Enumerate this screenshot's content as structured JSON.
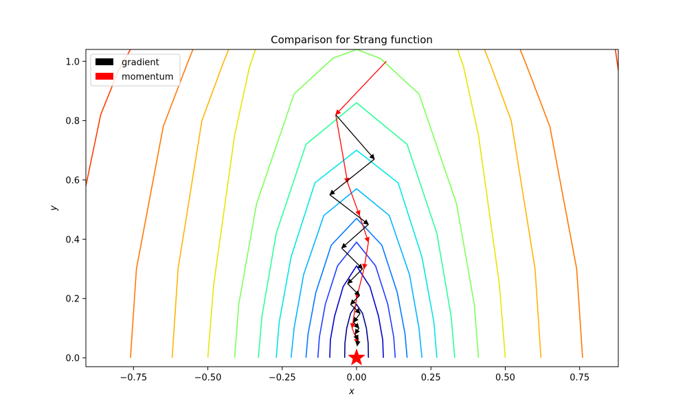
{
  "chart_data": {
    "type": "line",
    "title": "Comparison for Strang function",
    "xlabel": "x",
    "ylabel": "y",
    "xlim": [
      -0.91,
      0.88
    ],
    "ylim": [
      -0.03,
      1.04
    ],
    "xticks": [
      -0.75,
      -0.5,
      -0.25,
      0.0,
      0.25,
      0.5,
      0.75
    ],
    "xtick_labels": [
      "−0.75",
      "−0.50",
      "−0.25",
      "0.00",
      "0.25",
      "0.50",
      "0.75"
    ],
    "yticks": [
      0.0,
      0.2,
      0.4,
      0.6,
      0.8,
      1.0
    ],
    "ytick_labels": [
      "0.0",
      "0.2",
      "0.4",
      "0.6",
      "0.8",
      "1.0"
    ],
    "grid": false,
    "legend_position": "top-left",
    "legend": [
      {
        "name": "gradient",
        "color": "#000000"
      },
      {
        "name": "momentum",
        "color": "#ff0000"
      }
    ],
    "contours": [
      {
        "color": "#00008b",
        "x": [
          -0.04,
          -0.039,
          -0.033,
          -0.02,
          0,
          0.02,
          0.033,
          0.039,
          0.04
        ],
        "y": [
          0,
          0.05,
          0.1,
          0.15,
          0.18,
          0.15,
          0.1,
          0.05,
          0
        ]
      },
      {
        "color": "#0000cd",
        "x": [
          -0.09,
          -0.088,
          -0.074,
          -0.045,
          0,
          0.045,
          0.074,
          0.088,
          0.09
        ],
        "y": [
          0,
          0.06,
          0.14,
          0.24,
          0.31,
          0.24,
          0.14,
          0.06,
          0
        ]
      },
      {
        "color": "#1e3cff",
        "x": [
          -0.13,
          -0.125,
          -0.105,
          -0.064,
          0,
          0.064,
          0.105,
          0.125,
          0.13
        ],
        "y": [
          0,
          0.07,
          0.18,
          0.31,
          0.39,
          0.31,
          0.18,
          0.07,
          0
        ]
      },
      {
        "color": "#0078ff",
        "x": [
          -0.17,
          -0.163,
          -0.137,
          -0.085,
          0,
          0.085,
          0.137,
          0.163,
          0.17
        ],
        "y": [
          0,
          0.08,
          0.22,
          0.38,
          0.47,
          0.38,
          0.22,
          0.08,
          0
        ]
      },
      {
        "color": "#00b4ff",
        "x": [
          -0.22,
          -0.21,
          -0.178,
          -0.11,
          0,
          0.11,
          0.178,
          0.21,
          0.22
        ],
        "y": [
          0,
          0.1,
          0.28,
          0.48,
          0.57,
          0.48,
          0.28,
          0.1,
          0
        ]
      },
      {
        "color": "#00e6e6",
        "x": [
          -0.27,
          -0.26,
          -0.22,
          -0.14,
          0,
          0.14,
          0.22,
          0.26,
          0.27
        ],
        "y": [
          0,
          0.12,
          0.34,
          0.59,
          0.7,
          0.59,
          0.34,
          0.12,
          0
        ]
      },
      {
        "color": "#2cff9a",
        "x": [
          -0.33,
          -0.318,
          -0.27,
          -0.17,
          0,
          0.17,
          0.27,
          0.318,
          0.33
        ],
        "y": [
          0,
          0.14,
          0.42,
          0.72,
          0.86,
          0.72,
          0.42,
          0.14,
          0
        ]
      },
      {
        "color": "#7cff5a",
        "x": [
          -0.41,
          -0.396,
          -0.336,
          -0.21,
          -0.08,
          0,
          0.08,
          0.21,
          0.336,
          0.396,
          0.41
        ],
        "y": [
          0,
          0.18,
          0.52,
          0.89,
          1.01,
          1.04,
          1.01,
          0.89,
          0.52,
          0.18,
          0
        ]
      },
      {
        "color": "#e6e600",
        "x": [
          -0.5,
          -0.48,
          -0.41,
          -0.36,
          -0.34
        ],
        "y": [
          0,
          0.25,
          0.75,
          0.98,
          1.04
        ]
      },
      {
        "color": "#e6e600",
        "x": [
          0.5,
          0.48,
          0.41,
          0.36,
          0.34
        ],
        "y": [
          0,
          0.25,
          0.75,
          0.98,
          1.04
        ]
      },
      {
        "color": "#ffb400",
        "x": [
          -0.62,
          -0.6,
          -0.52,
          -0.45,
          -0.43
        ],
        "y": [
          0,
          0.3,
          0.8,
          0.99,
          1.04
        ]
      },
      {
        "color": "#ffb400",
        "x": [
          0.62,
          0.6,
          0.52,
          0.45,
          0.43
        ],
        "y": [
          0,
          0.3,
          0.8,
          0.99,
          1.04
        ]
      },
      {
        "color": "#ff7800",
        "x": [
          -0.76,
          -0.74,
          -0.65,
          -0.57,
          -0.55
        ],
        "y": [
          0,
          0.3,
          0.78,
          0.99,
          1.04
        ]
      },
      {
        "color": "#ff7800",
        "x": [
          0.76,
          0.74,
          0.65,
          0.57,
          0.55
        ],
        "y": [
          0,
          0.3,
          0.78,
          0.99,
          1.04
        ]
      },
      {
        "color": "#ff3c00",
        "x": [
          -0.91,
          -0.86,
          -0.8,
          -0.76
        ],
        "y": [
          0.58,
          0.82,
          0.97,
          1.04
        ]
      },
      {
        "color": "#ff3c00",
        "x": [
          0.88,
          0.87
        ],
        "y": [
          0.97,
          1.04
        ]
      }
    ],
    "series": [
      {
        "name": "gradient",
        "color": "#000000",
        "x": [
          -0.07,
          0.06,
          -0.09,
          0.04,
          -0.05,
          0.02,
          -0.03,
          0.01,
          -0.02,
          0.012,
          -0.01,
          0.008,
          -0.005,
          0.005,
          0.002
        ],
        "y": [
          0.82,
          0.67,
          0.55,
          0.45,
          0.37,
          0.3,
          0.25,
          0.21,
          0.18,
          0.15,
          0.12,
          0.1,
          0.08,
          0.06,
          0.04
        ]
      },
      {
        "name": "momentum",
        "color": "#ff0000",
        "x": [
          0.1,
          -0.07,
          -0.03,
          0.01,
          0.04,
          0.025,
          0.0,
          -0.015,
          0.005
        ],
        "y": [
          1.0,
          0.82,
          0.59,
          0.48,
          0.39,
          0.3,
          0.2,
          0.1,
          0.05
        ]
      }
    ],
    "markers": [
      {
        "type": "star",
        "x": 0.0,
        "y": 0.0,
        "color": "#ff0000"
      }
    ]
  }
}
